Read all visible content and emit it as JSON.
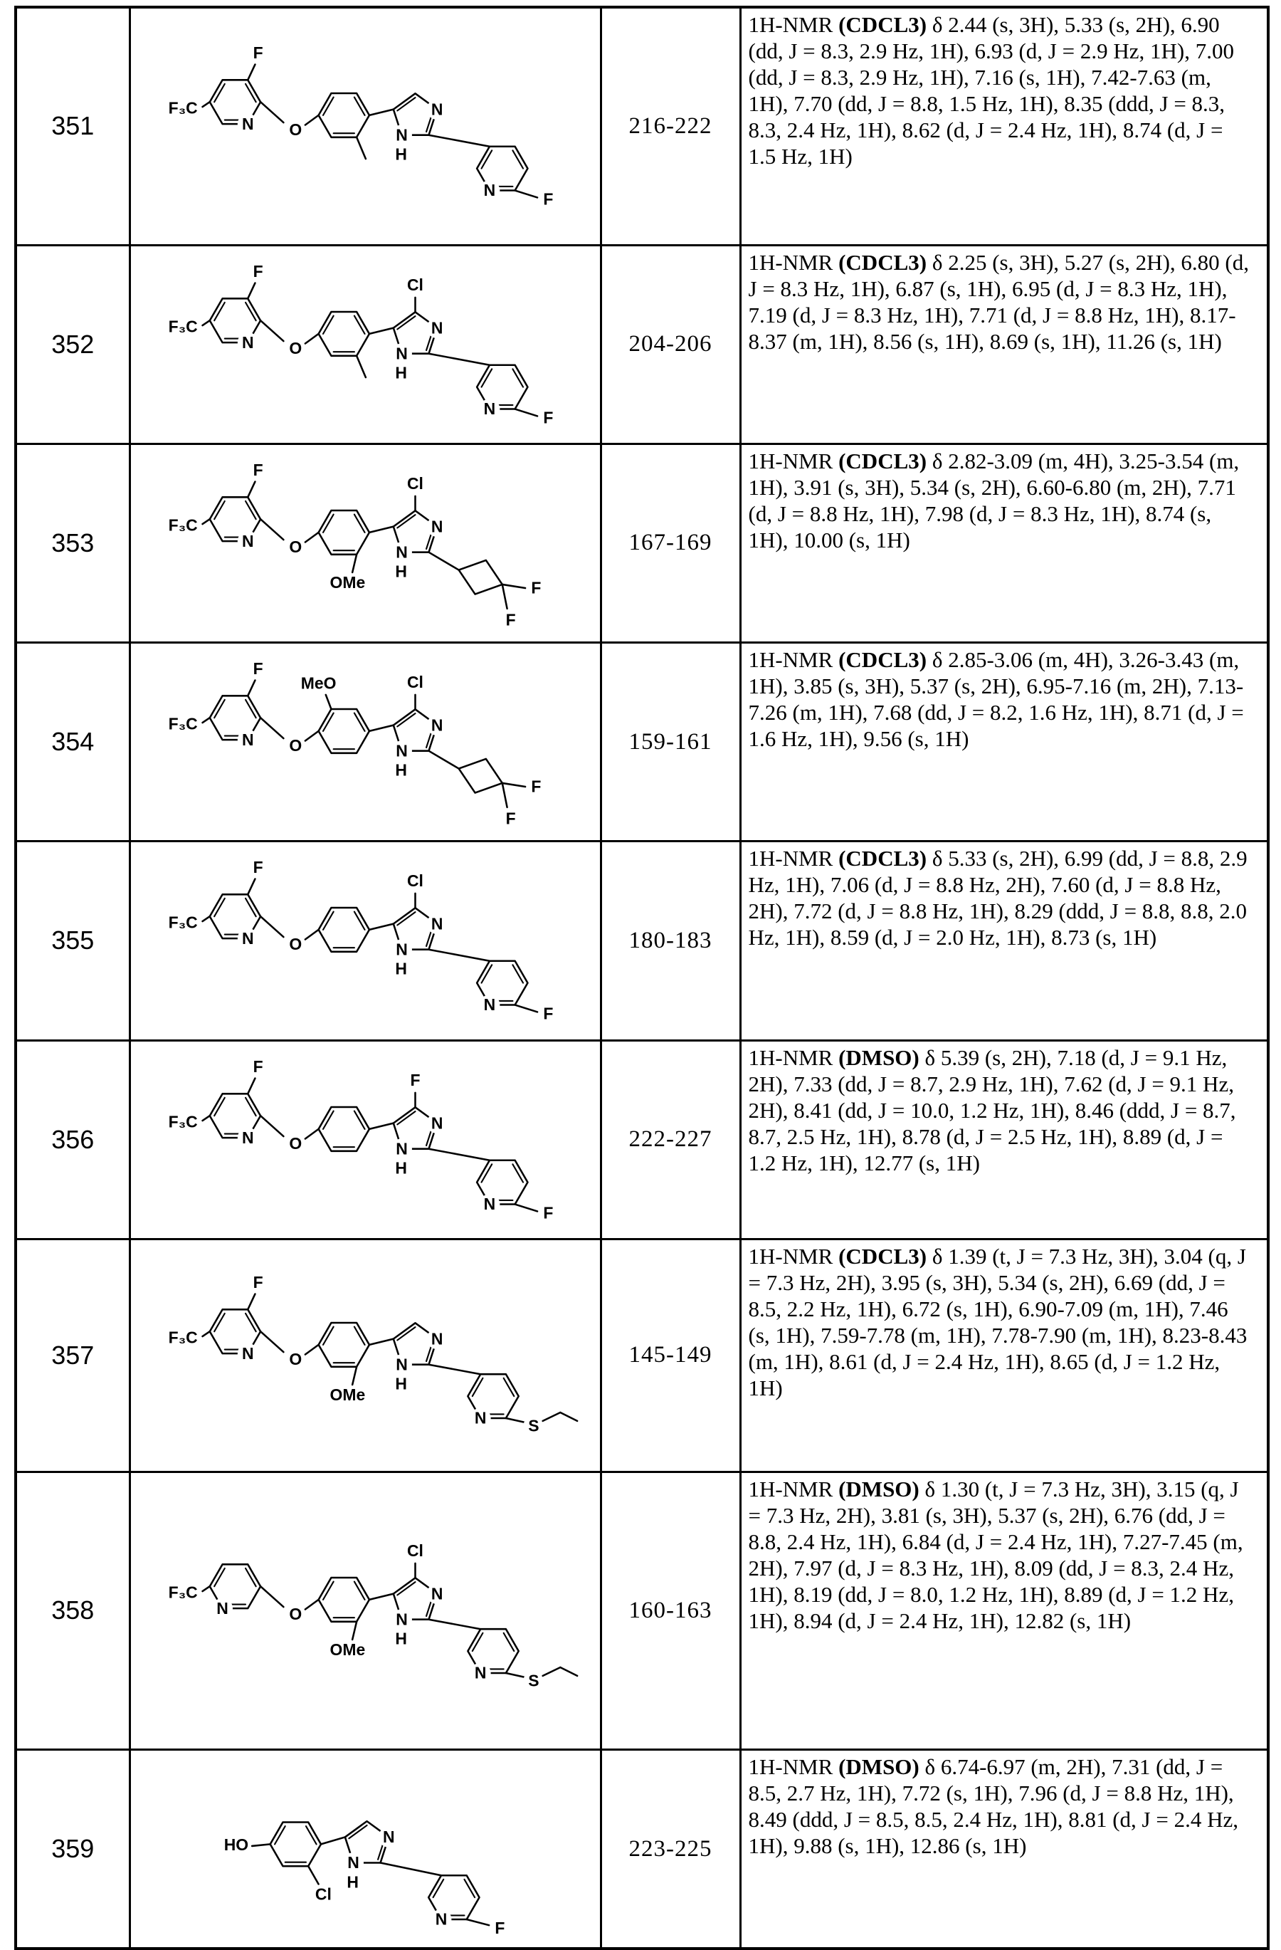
{
  "page": {
    "background": "#ffffff",
    "ink": "#000000"
  },
  "table": {
    "rows": [
      {
        "compound": "351",
        "melting_point": "216-222",
        "nmr_prefix": "1H-NMR ",
        "nmr_solvent": "(CDCL3)",
        "nmr_shifts": " δ 2.44 (s, 3H), 5.33 (s, 2H), 6.90 (dd, J = 8.3, 2.9 Hz, 1H), 6.93 (d, J = 2.9 Hz, 1H), 7.00 (dd, J = 8.3, 2.9 Hz, 1H), 7.16 (s, 1H), 7.42-7.63 (m, 1H), 7.70 (dd, J = 8.8, 1.5 Hz, 1H), 8.35 (ddd, J = 8.3, 8.3, 2.4 Hz, 1H), 8.62 (d, J = 2.4 Hz, 1H), 8.74 (d, J = 1.5 Hz, 1H)",
        "structure": {
          "variant": "ether",
          "left_ring": {
            "cf3_label": "F₃C",
            "f_label": "F",
            "n_label": "N",
            "n_pos": "dr"
          },
          "linker_label": "O",
          "middle_ring": {
            "substituent": "methyl",
            "label": null,
            "pos": "stub"
          },
          "imidazole": {
            "top_label": null,
            "n_label": "N",
            "nh_label": "N",
            "h_label": "H"
          },
          "right_group": {
            "type": "pyridine-F",
            "n_label": "N",
            "f_label": "F"
          }
        }
      },
      {
        "compound": "352",
        "melting_point": "204-206",
        "nmr_prefix": "1H-NMR ",
        "nmr_solvent": "(CDCL3)",
        "nmr_shifts": " δ 2.25 (s, 3H), 5.27 (s, 2H), 6.80 (d, J = 8.3 Hz, 1H), 6.87 (s, 1H), 6.95 (d, J = 8.3 Hz, 1H), 7.19 (d, J = 8.3 Hz, 1H), 7.71 (d, J = 8.8 Hz, 1H), 8.17-8.37 (m, 1H), 8.56 (s, 1H), 8.69 (s, 1H), 11.26 (s, 1H)",
        "structure": {
          "variant": "ether",
          "left_ring": {
            "cf3_label": "F₃C",
            "f_label": "F",
            "n_label": "N",
            "n_pos": "dr"
          },
          "linker_label": "O",
          "middle_ring": {
            "substituent": "methyl",
            "label": null,
            "pos": "stub"
          },
          "imidazole": {
            "top_label": "Cl",
            "n_label": "N",
            "nh_label": "N",
            "h_label": "H"
          },
          "right_group": {
            "type": "pyridine-F",
            "n_label": "N",
            "f_label": "F"
          }
        }
      },
      {
        "compound": "353",
        "melting_point": "167-169",
        "nmr_prefix": "1H-NMR ",
        "nmr_solvent": "(CDCL3)",
        "nmr_shifts": " δ 2.82-3.09 (m, 4H), 3.25-3.54 (m, 1H), 3.91 (s, 3H), 5.34 (s, 2H), 6.60-6.80 (m, 2H), 7.71 (d, J = 8.8 Hz, 1H), 7.98 (d, J = 8.3 Hz, 1H), 8.74 (s, 1H), 10.00 (s, 1H)",
        "structure": {
          "variant": "ether",
          "left_ring": {
            "cf3_label": "F₃C",
            "f_label": "F",
            "n_label": "N",
            "n_pos": "dr"
          },
          "linker_label": "O",
          "middle_ring": {
            "substituent": "methoxy",
            "label": "OMe",
            "pos": "below"
          },
          "imidazole": {
            "top_label": "Cl",
            "n_label": "N",
            "nh_label": "N",
            "h_label": "H"
          },
          "right_group": {
            "type": "cyclobutyl-F2",
            "f_labels": [
              "F",
              "F"
            ]
          }
        }
      },
      {
        "compound": "354",
        "melting_point": "159-161",
        "nmr_prefix": "1H-NMR ",
        "nmr_solvent": "(CDCL3)",
        "nmr_shifts": " δ 2.85-3.06 (m, 4H), 3.26-3.43 (m, 1H), 3.85 (s, 3H), 5.37 (s, 2H), 6.95-7.16 (m, 2H), 7.13-7.26 (m, 1H), 7.68 (dd, J = 8.2, 1.6 Hz, 1H), 8.71 (d, J = 1.6 Hz, 1H), 9.56 (s, 1H)",
        "structure": {
          "variant": "ether",
          "left_ring": {
            "cf3_label": "F₃C",
            "f_label": "F",
            "n_label": "N",
            "n_pos": "dr"
          },
          "linker_label": "O",
          "middle_ring": {
            "substituent": "methoxy",
            "label": "MeO",
            "pos": "above"
          },
          "imidazole": {
            "top_label": "Cl",
            "n_label": "N",
            "nh_label": "N",
            "h_label": "H"
          },
          "right_group": {
            "type": "cyclobutyl-F2",
            "f_labels": [
              "F",
              "F"
            ]
          }
        }
      },
      {
        "compound": "355",
        "melting_point": "180-183",
        "nmr_prefix": "1H-NMR ",
        "nmr_solvent": "(CDCL3)",
        "nmr_shifts": " δ 5.33 (s, 2H), 6.99 (dd, J = 8.8, 2.9 Hz, 1H), 7.06 (d, J = 8.8 Hz, 2H), 7.60 (d, J = 8.8 Hz, 2H), 7.72 (d, J = 8.8 Hz, 1H), 8.29 (ddd, J = 8.8, 8.8, 2.0 Hz, 1H), 8.59 (d, J = 2.0 Hz, 1H), 8.73 (s, 1H)",
        "structure": {
          "variant": "ether",
          "left_ring": {
            "cf3_label": "F₃C",
            "f_label": "F",
            "n_label": "N",
            "n_pos": "dr"
          },
          "linker_label": "O",
          "middle_ring": {
            "substituent": null,
            "label": null,
            "pos": null
          },
          "imidazole": {
            "top_label": "Cl",
            "n_label": "N",
            "nh_label": "N",
            "h_label": "H"
          },
          "right_group": {
            "type": "pyridine-F",
            "n_label": "N",
            "f_label": "F"
          }
        }
      },
      {
        "compound": "356",
        "melting_point": "222-227",
        "nmr_prefix": "1H-NMR ",
        "nmr_solvent": "(DMSO)",
        "nmr_shifts": " δ 5.39 (s, 2H), 7.18 (d, J = 9.1 Hz, 2H), 7.33 (dd, J = 8.7, 2.9 Hz, 1H), 7.62 (d, J = 9.1 Hz, 2H), 8.41 (dd, J = 10.0, 1.2 Hz, 1H), 8.46 (ddd, J = 8.7, 8.7, 2.5 Hz, 1H), 8.78 (d, J = 2.5 Hz, 1H), 8.89 (d, J = 1.2 Hz, 1H), 12.77 (s, 1H)",
        "structure": {
          "variant": "ether",
          "left_ring": {
            "cf3_label": "F₃C",
            "f_label": "F",
            "n_label": "N",
            "n_pos": "dr"
          },
          "linker_label": "O",
          "middle_ring": {
            "substituent": null,
            "label": null,
            "pos": null
          },
          "imidazole": {
            "top_label": "F",
            "n_label": "N",
            "nh_label": "N",
            "h_label": "H"
          },
          "right_group": {
            "type": "pyridine-F",
            "n_label": "N",
            "f_label": "F"
          }
        }
      },
      {
        "compound": "357",
        "melting_point": "145-149",
        "nmr_prefix": "1H-NMR ",
        "nmr_solvent": "(CDCL3)",
        "nmr_shifts": " δ 1.39 (t, J = 7.3 Hz, 3H), 3.04 (q, J = 7.3 Hz, 2H), 3.95 (s, 3H), 5.34 (s, 2H), 6.69 (dd, J = 8.5, 2.2 Hz, 1H), 6.72 (s, 1H), 6.90-7.09 (m, 1H), 7.46 (s, 1H), 7.59-7.78 (m, 1H), 7.78-7.90 (m, 1H), 8.23-8.43 (m, 1H), 8.61 (d, J = 2.4 Hz, 1H), 8.65 (d, J = 1.2 Hz, 1H)",
        "structure": {
          "variant": "ether",
          "left_ring": {
            "cf3_label": "F₃C",
            "f_label": "F",
            "n_label": "N",
            "n_pos": "dr"
          },
          "linker_label": "O",
          "middle_ring": {
            "substituent": "methoxy",
            "label": "OMe",
            "pos": "below"
          },
          "imidazole": {
            "top_label": null,
            "n_label": "N",
            "nh_label": "N",
            "h_label": "H"
          },
          "right_group": {
            "type": "pyridine-SEt",
            "n_label": "N",
            "s_label": "S"
          }
        }
      },
      {
        "compound": "358",
        "melting_point": "160-163",
        "nmr_prefix": "1H-NMR ",
        "nmr_solvent": "(DMSO)",
        "nmr_shifts": " δ 1.30 (t, J = 7.3 Hz, 3H), 3.15 (q, J = 7.3 Hz, 2H), 3.81 (s, 3H), 5.37 (s, 2H), 6.76 (dd, J = 8.8, 2.4 Hz, 1H), 6.84 (d, J = 2.4 Hz, 1H), 7.27-7.45 (m, 2H), 7.97 (d, J = 8.3 Hz, 1H), 8.09 (dd, J = 8.3, 2.4 Hz, 1H), 8.19 (dd, J = 8.0, 1.2 Hz, 1H), 8.89 (d, J = 1.2 Hz, 1H), 8.94 (d, J = 2.4 Hz, 1H), 12.82 (s, 1H)",
        "structure": {
          "variant": "ether",
          "left_ring": {
            "cf3_label": "F₃C",
            "f_label": null,
            "n_label": "N",
            "n_pos": "dl"
          },
          "linker_label": "O",
          "middle_ring": {
            "substituent": "methoxy",
            "label": "OMe",
            "pos": "below"
          },
          "imidazole": {
            "top_label": "Cl",
            "n_label": "N",
            "nh_label": "N",
            "h_label": "H"
          },
          "right_group": {
            "type": "pyridine-SEt",
            "n_label": "N",
            "s_label": "S"
          }
        }
      },
      {
        "compound": "359",
        "melting_point": "223-225",
        "nmr_prefix": "1H-NMR ",
        "nmr_solvent": "(DMSO)",
        "nmr_shifts": " δ 6.74-6.97 (m, 2H), 7.31 (dd, J = 8.5, 2.7 Hz, 1H), 7.72 (s, 1H), 7.96 (d, J = 8.8 Hz, 1H), 8.49 (ddd, J = 8.5, 8.5, 2.4 Hz, 1H), 8.81 (d, J = 2.4 Hz, 1H), 9.88 (s, 1H), 12.86 (s, 1H)",
        "structure": {
          "variant": "phenol",
          "left_group": {
            "ho_label": "HO",
            "cl_label": "Cl"
          },
          "imidazole": {
            "top_label": null,
            "n_label": "N",
            "nh_label": "N",
            "h_label": "H"
          },
          "right_group": {
            "type": "pyridine-F",
            "n_label": "N",
            "f_label": "F"
          }
        }
      }
    ]
  }
}
